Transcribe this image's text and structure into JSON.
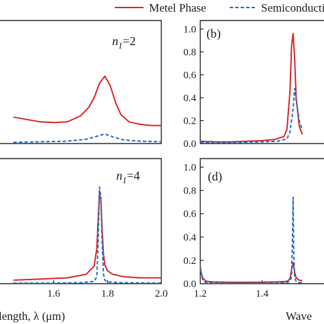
{
  "legend": {
    "entries": [
      {
        "label": "Metel Phase",
        "color": "#d62728",
        "style": "solid"
      },
      {
        "label": "Semiconducting Phase",
        "color": "#1f6fc0",
        "style": "dashed"
      }
    ],
    "placement": "top"
  },
  "chart_data": [
    {
      "panel": "a",
      "type": "line",
      "annotation": {
        "var": "n",
        "sub": "1",
        "rest": "=2"
      },
      "xlim": [
        1.4,
        2.0
      ],
      "ylim": [
        0,
        1.0
      ],
      "xticks": [],
      "xtick_labels": [],
      "yticks": [],
      "ytick_labels": [],
      "series": [
        {
          "name": "Metel Phase",
          "color": "#d62728",
          "x": [
            1.45,
            1.5,
            1.55,
            1.6,
            1.65,
            1.7,
            1.73,
            1.75,
            1.77,
            1.79,
            1.81,
            1.83,
            1.85,
            1.88,
            1.92,
            1.96,
            2.0
          ],
          "y": [
            0.22,
            0.2,
            0.18,
            0.175,
            0.18,
            0.23,
            0.3,
            0.38,
            0.5,
            0.56,
            0.48,
            0.34,
            0.24,
            0.18,
            0.16,
            0.15,
            0.15
          ]
        },
        {
          "name": "Semiconducting Phase",
          "color": "#1f6fc0",
          "x": [
            1.45,
            1.55,
            1.65,
            1.72,
            1.76,
            1.79,
            1.82,
            1.86,
            1.92,
            2.0
          ],
          "y": [
            0.01,
            0.015,
            0.02,
            0.035,
            0.06,
            0.08,
            0.055,
            0.03,
            0.02,
            0.015
          ]
        }
      ]
    },
    {
      "panel": "b",
      "type": "line",
      "annotation": "(b)",
      "xlim": [
        1.2,
        1.6
      ],
      "ylim": [
        0,
        1.05
      ],
      "xticks": [],
      "xtick_labels": [],
      "yticks": [
        0.0,
        0.2,
        0.4,
        0.6,
        0.8,
        1.0
      ],
      "ytick_labels": [
        "0.0",
        "0.2",
        "0.4",
        "0.6",
        "0.8",
        "1.0"
      ],
      "series": [
        {
          "name": "Metel Phase",
          "color": "#d62728",
          "x": [
            1.2,
            1.25,
            1.3,
            1.35,
            1.4,
            1.44,
            1.47,
            1.48,
            1.49,
            1.495,
            1.5,
            1.505,
            1.51,
            1.52,
            1.53
          ],
          "y": [
            0.02,
            0.015,
            0.015,
            0.02,
            0.025,
            0.035,
            0.06,
            0.12,
            0.45,
            0.85,
            0.96,
            0.75,
            0.4,
            0.15,
            0.08
          ]
        },
        {
          "name": "Semiconducting Phase",
          "color": "#1f6fc0",
          "x": [
            1.2,
            1.25,
            1.3,
            1.35,
            1.4,
            1.45,
            1.48,
            1.49,
            1.5,
            1.505,
            1.51,
            1.52,
            1.53
          ],
          "y": [
            0.01,
            0.01,
            0.01,
            0.012,
            0.015,
            0.02,
            0.04,
            0.1,
            0.3,
            0.48,
            0.38,
            0.2,
            0.12
          ]
        }
      ]
    },
    {
      "panel": "c",
      "type": "line",
      "annotation": {
        "var": "n",
        "sub": "1",
        "rest": "=4"
      },
      "xlim": [
        1.4,
        2.0
      ],
      "ylim": [
        0,
        1.05
      ],
      "xticks": [
        1.6,
        1.8,
        2.0
      ],
      "xtick_labels": [
        "1.6",
        "1.8",
        "2.0"
      ],
      "yticks": [],
      "ytick_labels": [],
      "xlabel": "length, λ (μm)",
      "series": [
        {
          "name": "Metel Phase",
          "color": "#d62728",
          "x": [
            1.45,
            1.55,
            1.65,
            1.72,
            1.75,
            1.76,
            1.765,
            1.77,
            1.775,
            1.78,
            1.785,
            1.79,
            1.8,
            1.82,
            1.86,
            1.92,
            2.0
          ],
          "y": [
            0.03,
            0.04,
            0.05,
            0.08,
            0.15,
            0.3,
            0.55,
            0.78,
            0.72,
            0.45,
            0.25,
            0.16,
            0.11,
            0.08,
            0.06,
            0.05,
            0.05
          ]
        },
        {
          "name": "Semiconducting Phase",
          "color": "#1f6fc0",
          "x": [
            1.45,
            1.6,
            1.7,
            1.75,
            1.76,
            1.765,
            1.77,
            1.775,
            1.78,
            1.785,
            1.79,
            1.8,
            1.85,
            2.0
          ],
          "y": [
            0.005,
            0.005,
            0.008,
            0.02,
            0.06,
            0.35,
            0.83,
            0.75,
            0.35,
            0.08,
            0.03,
            0.015,
            0.008,
            0.005
          ]
        }
      ]
    },
    {
      "panel": "d",
      "type": "line",
      "annotation": "(d)",
      "xlim": [
        1.2,
        1.6
      ],
      "ylim": [
        0,
        1.05
      ],
      "xticks": [
        1.2,
        1.4
      ],
      "xtick_labels": [
        "1.2",
        "1.4"
      ],
      "yticks": [
        0.0,
        0.2,
        0.4,
        0.6,
        0.8,
        1.0
      ],
      "ytick_labels": [
        "0.0",
        "0.2",
        "0.4",
        "0.6",
        "0.8",
        "1.0"
      ],
      "xlabel": "Wave",
      "series": [
        {
          "name": "Metel Phase",
          "color": "#d62728",
          "x": [
            1.2,
            1.205,
            1.21,
            1.22,
            1.24,
            1.3,
            1.35,
            1.4,
            1.45,
            1.48,
            1.49,
            1.495,
            1.5,
            1.505,
            1.51,
            1.52,
            1.53
          ],
          "y": [
            0.13,
            0.07,
            0.04,
            0.02,
            0.015,
            0.012,
            0.012,
            0.013,
            0.015,
            0.02,
            0.04,
            0.12,
            0.18,
            0.1,
            0.05,
            0.03,
            0.025
          ]
        },
        {
          "name": "Semiconducting Phase",
          "color": "#1f6fc0",
          "x": [
            1.2,
            1.205,
            1.21,
            1.22,
            1.24,
            1.3,
            1.35,
            1.4,
            1.45,
            1.48,
            1.49,
            1.495,
            1.498,
            1.5,
            1.502,
            1.505,
            1.51,
            1.52,
            1.53
          ],
          "y": [
            0.15,
            0.06,
            0.02,
            0.01,
            0.006,
            0.005,
            0.005,
            0.005,
            0.006,
            0.01,
            0.02,
            0.06,
            0.35,
            0.74,
            0.3,
            0.05,
            0.02,
            0.01,
            0.008
          ]
        }
      ]
    }
  ]
}
